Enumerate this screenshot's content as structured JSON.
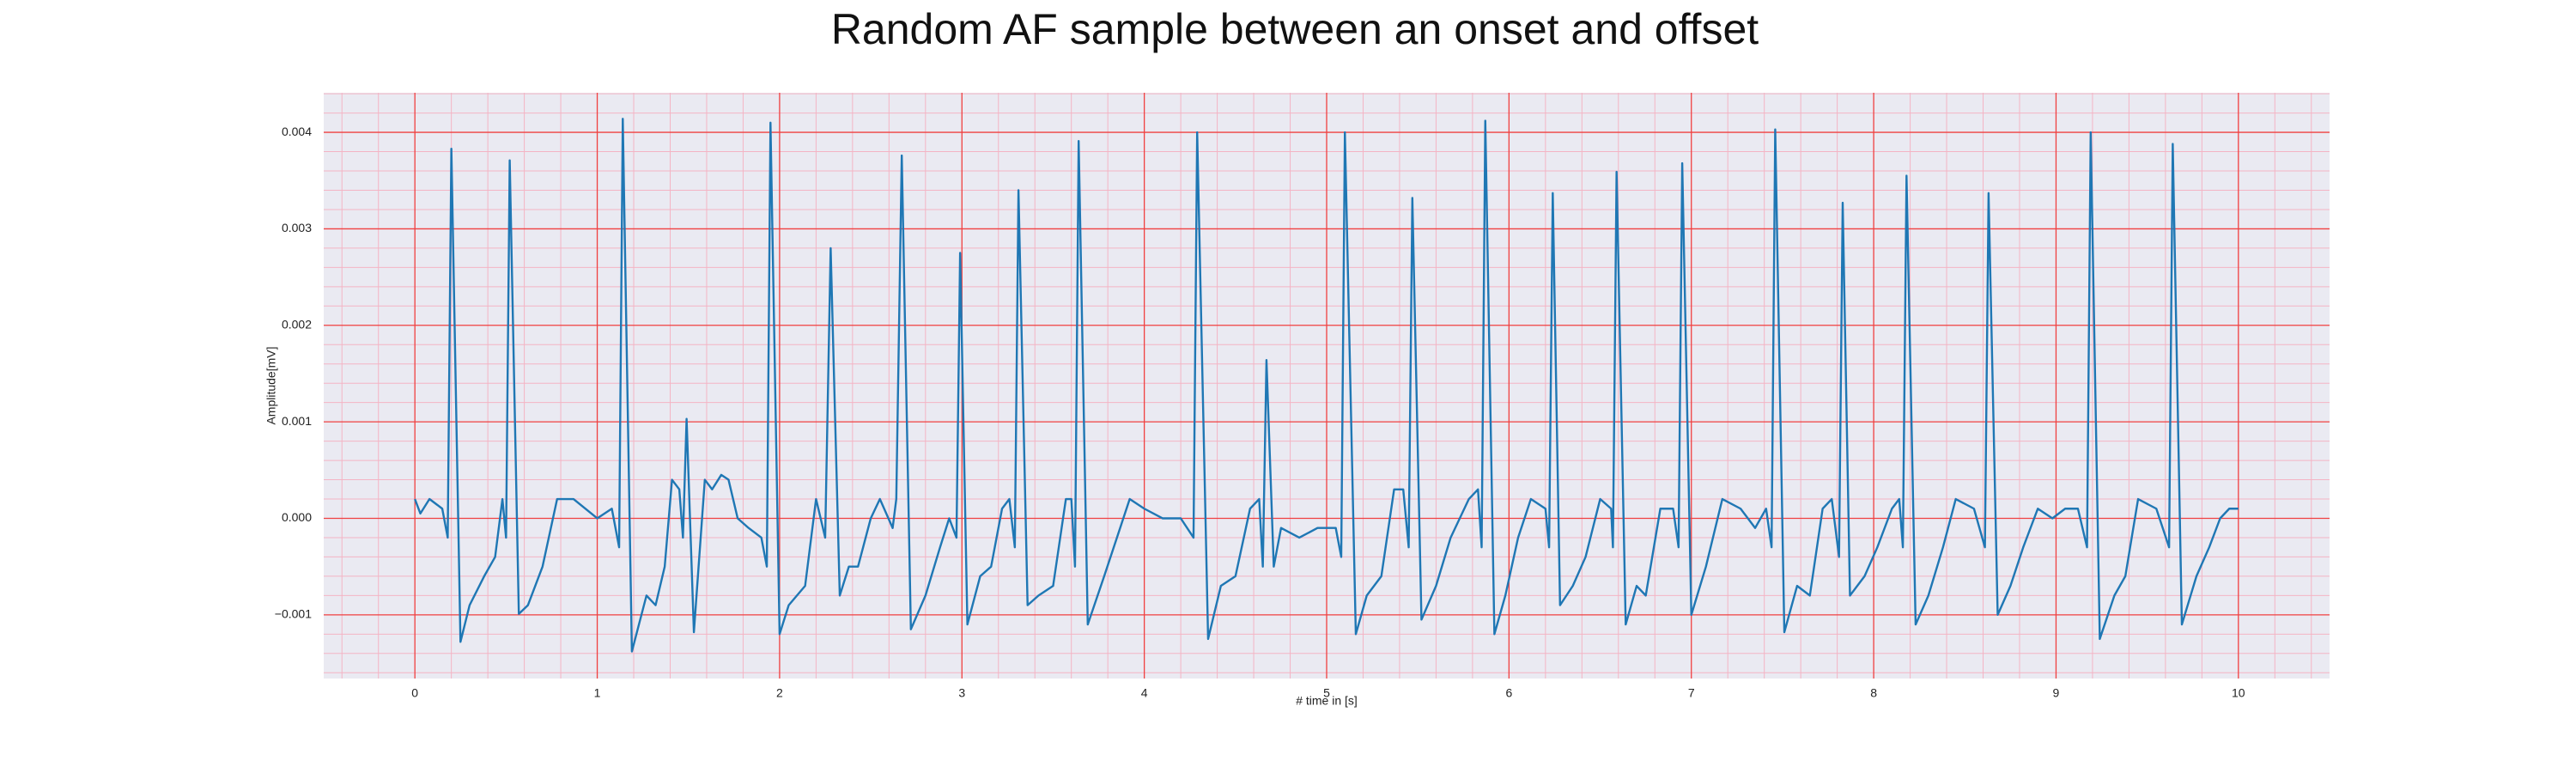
{
  "chart_data": {
    "type": "line",
    "title": "Random AF sample between an onset and offset",
    "xlabel": "# time in [s]",
    "ylabel": "Amplitude[mV]",
    "xlim": [
      -0.5,
      10.5
    ],
    "ylim": [
      -0.00166,
      0.00441
    ],
    "xticks": [
      0,
      1,
      2,
      3,
      4,
      5,
      6,
      7,
      8,
      9,
      10
    ],
    "yticks": [
      {
        "value": -0.001,
        "label": "−0.001"
      },
      {
        "value": 0,
        "label": "0.000"
      },
      {
        "value": 0.001,
        "label": "0.001"
      },
      {
        "value": 0.002,
        "label": "0.002"
      },
      {
        "value": 0.003,
        "label": "0.003"
      },
      {
        "value": 0.004,
        "label": "0.004"
      }
    ],
    "grid": true,
    "grid_color": "#f04040",
    "minor_grid_color": "#f4b4c4",
    "minor_grid_divisions": 5,
    "background": "#eaeaf2",
    "x": [
      0,
      0.03,
      0.08,
      0.15,
      0.18,
      0.2,
      0.25,
      0.3,
      0.38,
      0.44,
      0.48,
      0.5,
      0.52,
      0.57,
      0.62,
      0.7,
      0.78,
      0.87,
      1.0,
      1.08,
      1.12,
      1.14,
      1.19,
      1.27,
      1.32,
      1.37,
      1.41,
      1.45,
      1.47,
      1.49,
      1.53,
      1.59,
      1.63,
      1.68,
      1.72,
      1.77,
      1.83,
      1.9,
      1.93,
      1.95,
      2.0,
      2.05,
      2.14,
      2.2,
      2.25,
      2.28,
      2.33,
      2.38,
      2.43,
      2.5,
      2.55,
      2.62,
      2.64,
      2.67,
      2.72,
      2.8,
      2.88,
      2.93,
      2.97,
      2.99,
      3.03,
      3.1,
      3.16,
      3.22,
      3.26,
      3.29,
      3.31,
      3.36,
      3.42,
      3.5,
      3.57,
      3.6,
      3.62,
      3.64,
      3.69,
      3.78,
      3.85,
      3.92,
      4.0,
      4.1,
      4.2,
      4.27,
      4.29,
      4.35,
      4.42,
      4.5,
      4.58,
      4.63,
      4.65,
      4.67,
      4.71,
      4.75,
      4.85,
      4.95,
      5.05,
      5.08,
      5.1,
      5.16,
      5.22,
      5.3,
      5.37,
      5.42,
      5.45,
      5.47,
      5.52,
      5.6,
      5.68,
      5.78,
      5.83,
      5.85,
      5.87,
      5.92,
      5.98,
      6.05,
      6.12,
      6.2,
      6.22,
      6.24,
      6.28,
      6.35,
      6.42,
      6.5,
      6.56,
      6.57,
      6.59,
      6.64,
      6.7,
      6.75,
      6.83,
      6.9,
      6.93,
      6.95,
      7.0,
      7.08,
      7.17,
      7.27,
      7.35,
      7.41,
      7.44,
      7.46,
      7.51,
      7.58,
      7.65,
      7.72,
      7.77,
      7.81,
      7.83,
      7.87,
      7.95,
      8.02,
      8.1,
      8.14,
      8.16,
      8.18,
      8.23,
      8.3,
      8.38,
      8.45,
      8.55,
      8.61,
      8.63,
      8.68,
      8.75,
      8.82,
      8.9,
      8.98,
      9.05,
      9.12,
      9.17,
      9.19,
      9.24,
      9.32,
      9.38,
      9.45,
      9.55,
      9.62,
      9.64,
      9.69,
      9.77,
      9.84,
      9.9,
      9.95,
      10
    ],
    "series": [
      {
        "color": "#1f77b4",
        "values": [
          0.0002,
          5e-05,
          0.0002,
          0.0001,
          -0.0002,
          0.00383,
          -0.00128,
          -0.0009,
          -0.0006,
          -0.0004,
          0.0002,
          -0.0002,
          0.00371,
          -0.00099,
          -0.0009,
          -0.0005,
          0.0002,
          0.0002,
          0,
          0.0001,
          -0.0003,
          0.00414,
          -0.00138,
          -0.0008,
          -0.0009,
          -0.0005,
          0.0004,
          0.0003,
          -0.0002,
          0.00103,
          -0.00118,
          0.0004,
          0.0003,
          0.00045,
          0.0004,
          0,
          -0.0001,
          -0.0002,
          -0.0005,
          0.0041,
          -0.0012,
          -0.0009,
          -0.0007,
          0.0002,
          -0.0002,
          0.0028,
          -0.0008,
          -0.0005,
          -0.0005,
          0,
          0.0002,
          -0.0001,
          0.0002,
          0.00376,
          -0.00115,
          -0.0008,
          -0.0003,
          0,
          -0.0002,
          0.00275,
          -0.0011,
          -0.0006,
          -0.0005,
          0.0001,
          0.0002,
          -0.0003,
          0.0034,
          -0.0009,
          -0.0008,
          -0.0007,
          0.0002,
          0.0002,
          -0.0005,
          0.00391,
          -0.0011,
          -0.0006,
          -0.0002,
          0.0002,
          0.0001,
          0,
          0,
          -0.0002,
          0.004,
          -0.00125,
          -0.0007,
          -0.0006,
          0.0001,
          0.0002,
          -0.0005,
          0.00164,
          -0.0005,
          -0.0001,
          -0.0002,
          -0.0001,
          -0.0001,
          -0.0004,
          0.004,
          -0.0012,
          -0.0008,
          -0.0006,
          0.0003,
          0.0003,
          -0.0003,
          0.00332,
          -0.00105,
          -0.0007,
          -0.0002,
          0.0002,
          0.0003,
          -0.0003,
          0.00412,
          -0.0012,
          -0.0008,
          -0.0002,
          0.0002,
          0.0001,
          -0.0003,
          0.00337,
          -0.0009,
          -0.0007,
          -0.0004,
          0.0002,
          0.0001,
          -0.0003,
          0.00359,
          -0.0011,
          -0.0007,
          -0.0008,
          0.0001,
          0.0001,
          -0.0003,
          0.00368,
          -0.001,
          -0.0005,
          0.0002,
          0.0001,
          -0.0001,
          0.0001,
          -0.0003,
          0.00403,
          -0.00118,
          -0.0007,
          -0.0008,
          0.0001,
          0.0002,
          -0.0004,
          0.00327,
          -0.0008,
          -0.0006,
          -0.0003,
          0.0001,
          0.0002,
          -0.0003,
          0.00355,
          -0.0011,
          -0.0008,
          -0.0003,
          0.0002,
          0.0001,
          -0.0003,
          0.00337,
          -0.001,
          -0.0007,
          -0.0003,
          0.0001,
          0,
          0.0001,
          0.0001,
          -0.0003,
          0.004,
          -0.00125,
          -0.0008,
          -0.0006,
          0.0002,
          0.0001,
          -0.0003,
          0.00388,
          -0.0011,
          -0.0006,
          -0.0003,
          0,
          0.0001,
          0.0001
        ]
      }
    ]
  }
}
